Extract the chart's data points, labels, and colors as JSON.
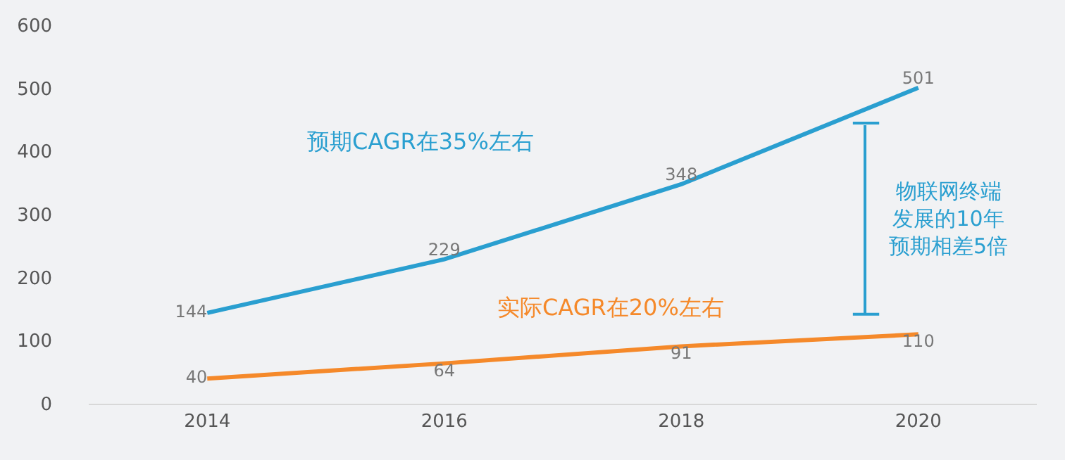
{
  "chart_data": {
    "type": "line",
    "x": [
      2014,
      2016,
      2018,
      2020
    ],
    "series": [
      {
        "color": "#2a9fd0",
        "values": [
          144,
          229,
          348,
          501
        ]
      },
      {
        "color": "#f5892a",
        "values": [
          40,
          64,
          91,
          110
        ]
      }
    ],
    "xlim": [
      2013,
      2021
    ],
    "xticks": [
      2014,
      2016,
      2018,
      2020
    ],
    "ylim": [
      0,
      600
    ],
    "yticks": [
      0,
      100,
      200,
      300,
      400,
      500,
      600
    ],
    "data_labels": true,
    "grid": false,
    "marker": "none",
    "line_style": "solid",
    "annotations": [
      "预期CAGR在35%左右",
      "实际CAGR在20%左右",
      "物联网终端发展的10年预期相差5倍"
    ]
  }
}
